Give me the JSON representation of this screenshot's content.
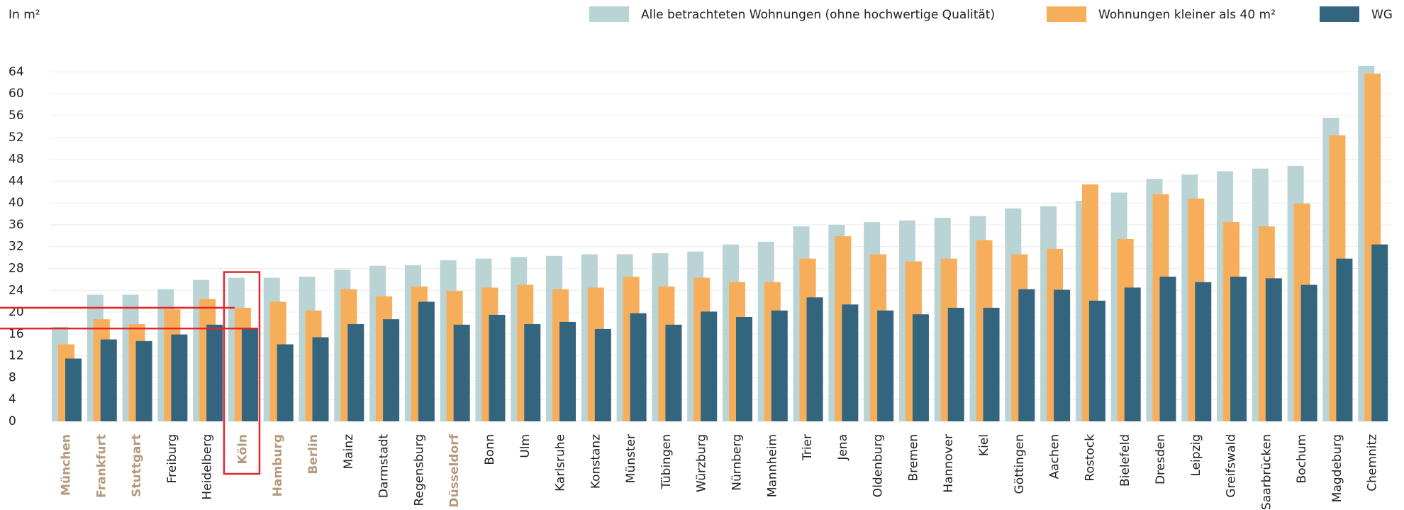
{
  "chart_data": {
    "type": "bar",
    "y_label": "In m²",
    "categories": [
      "München",
      "Frankfurt",
      "Stuttgart",
      "Freiburg",
      "Heidelberg",
      "Köln",
      "Hamburg",
      "Berlin",
      "Mainz",
      "Darmstadt",
      "Regensburg",
      "Düsseldorf",
      "Bonn",
      "Ulm",
      "Karlsruhe",
      "Konstanz",
      "Münster",
      "Tübingen",
      "Würzburg",
      "Nürnberg",
      "Mannheim",
      "Trier",
      "Jena",
      "Oldenburg",
      "Bremen",
      "Hannover",
      "Kiel",
      "Göttingen",
      "Aachen",
      "Rostock",
      "Bielefeld",
      "Dresden",
      "Leipzig",
      "Greifswald",
      "Saarbrücken",
      "Bochum",
      "Magdeburg",
      "Chemnitz"
    ],
    "series": [
      {
        "name": "Alle betrachteten Wohnungen (ohne hochwertige Qualität)",
        "color": "#bad3d5",
        "values": [
          17.3,
          23.2,
          23.2,
          24.2,
          25.9,
          26.3,
          26.3,
          26.5,
          27.8,
          28.5,
          28.6,
          29.5,
          29.8,
          30.1,
          30.3,
          30.6,
          30.6,
          30.8,
          31.1,
          32.4,
          32.9,
          35.7,
          36.0,
          36.5,
          36.8,
          37.3,
          37.6,
          39.0,
          39.4,
          40.4,
          41.9,
          44.4,
          45.2,
          45.8,
          46.3,
          46.8,
          55.6,
          65.1
        ]
      },
      {
        "name": "Wohnungen kleiner als 40 m²",
        "color": "#f7ae5a",
        "values": [
          14.1,
          18.7,
          17.8,
          20.5,
          22.4,
          20.8,
          21.9,
          20.3,
          24.2,
          22.9,
          24.7,
          23.9,
          24.5,
          25.0,
          24.2,
          24.5,
          26.5,
          24.7,
          26.3,
          25.5,
          25.5,
          29.8,
          33.9,
          30.6,
          29.3,
          29.8,
          33.2,
          30.6,
          31.6,
          43.4,
          33.4,
          41.6,
          40.8,
          36.5,
          35.7,
          39.9,
          52.4,
          63.7
        ]
      },
      {
        "name": "WG",
        "color": "#33657f",
        "values": [
          11.5,
          15.0,
          14.7,
          15.9,
          17.7,
          17.0,
          14.1,
          15.4,
          17.8,
          18.7,
          21.9,
          17.7,
          19.5,
          17.8,
          18.2,
          16.9,
          19.8,
          17.7,
          20.1,
          19.1,
          20.3,
          22.7,
          21.4,
          20.3,
          19.6,
          20.8,
          20.8,
          24.2,
          24.1,
          22.1,
          24.5,
          26.5,
          25.5,
          26.5,
          26.2,
          25.0,
          29.8,
          32.4
        ]
      }
    ],
    "ylim": [
      0,
      66
    ],
    "yticks": [
      0,
      4,
      8,
      12,
      16,
      20,
      24,
      28,
      32,
      36,
      40,
      44,
      48,
      52,
      56,
      60,
      64
    ],
    "grid": true,
    "legend": "top-right",
    "highlight": {
      "color": "#b59a7b",
      "categories": [
        0,
        1,
        2,
        5,
        6,
        7,
        11
      ]
    },
    "focus": {
      "category": 5,
      "color": "#e3262b"
    }
  }
}
